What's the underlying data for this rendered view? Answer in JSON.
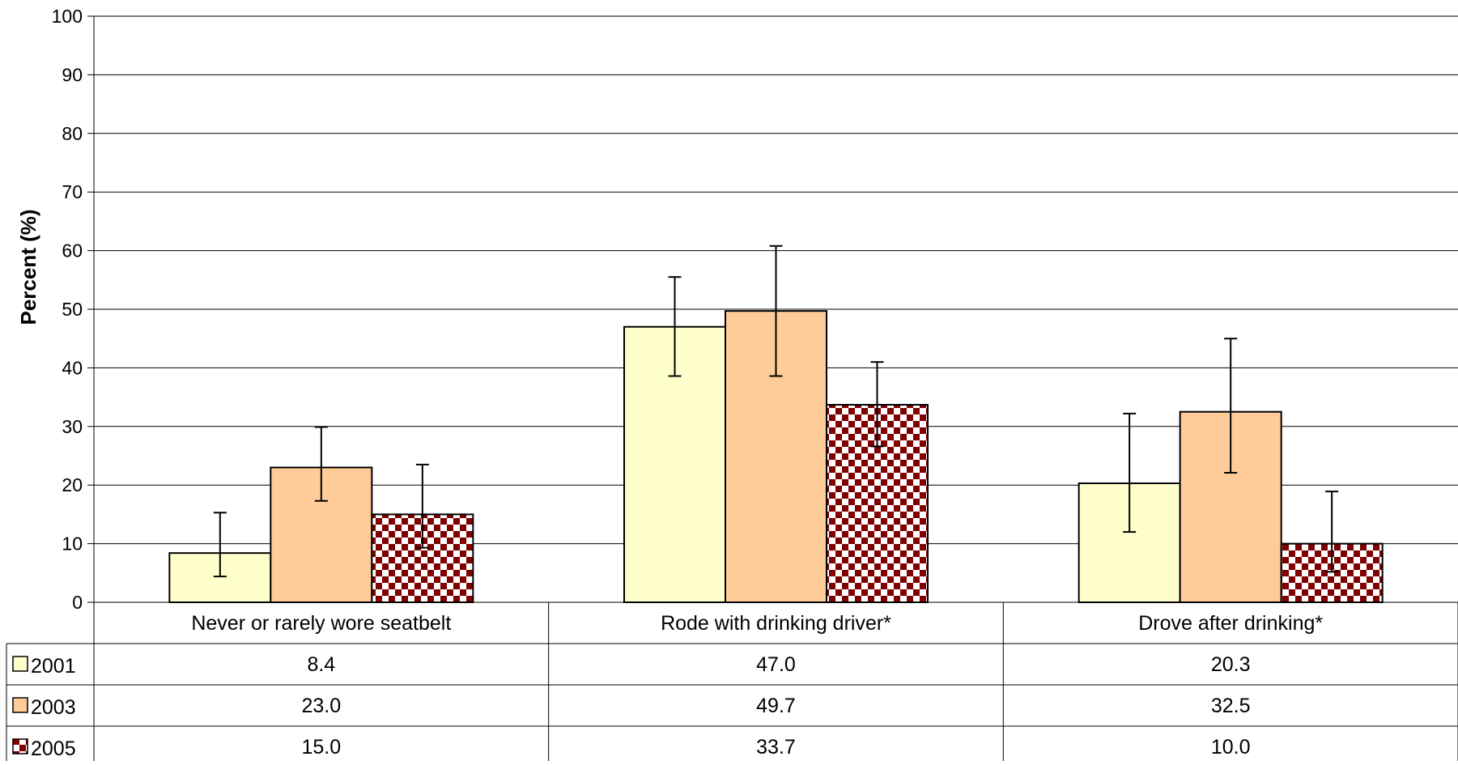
{
  "chart_data": {
    "type": "bar",
    "title": "",
    "xlabel": "",
    "ylabel": "Percent (%)",
    "ylim": [
      0,
      100
    ],
    "yticks": [
      "0",
      "10",
      "20",
      "30",
      "40",
      "50",
      "60",
      "70",
      "80",
      "90",
      "100"
    ],
    "grid": true,
    "categories": [
      "Never or rarely wore seatbelt",
      "Rode with drinking driver*",
      "Drove after drinking*"
    ],
    "series": [
      {
        "name": "2001",
        "values": [
          8.4,
          47.0,
          20.3
        ],
        "labels": [
          "8.4",
          "47.0",
          "20.3"
        ],
        "ci_low": [
          4.4,
          38.6,
          12.0
        ],
        "ci_high": [
          15.3,
          55.5,
          32.2
        ],
        "fill": "#FFFFCC",
        "pattern": "solid"
      },
      {
        "name": "2003",
        "values": [
          23.0,
          49.7,
          32.5
        ],
        "labels": [
          "23.0",
          "49.7",
          "32.5"
        ],
        "ci_low": [
          17.3,
          38.6,
          22.1
        ],
        "ci_high": [
          29.9,
          60.8,
          45.0
        ],
        "fill": "#FFCC99",
        "pattern": "solid"
      },
      {
        "name": "2005",
        "values": [
          15.0,
          33.7,
          10.0
        ],
        "labels": [
          "15.0",
          "33.7",
          "10.0"
        ],
        "ci_low": [
          9.3,
          26.6,
          5.2
        ],
        "ci_high": [
          23.5,
          41.0,
          18.9
        ],
        "fill": "#800000",
        "pattern": "diagonal-zigzag"
      }
    ],
    "legend": "data-table-left"
  }
}
